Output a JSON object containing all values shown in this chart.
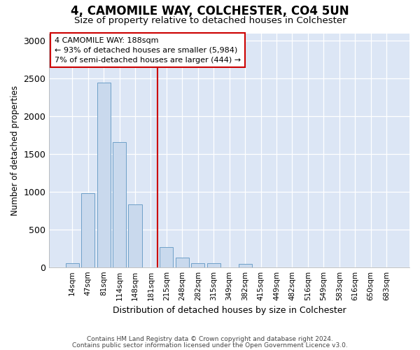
{
  "title1": "4, CAMOMILE WAY, COLCHESTER, CO4 5UN",
  "title2": "Size of property relative to detached houses in Colchester",
  "xlabel": "Distribution of detached houses by size in Colchester",
  "ylabel": "Number of detached properties",
  "bar_labels": [
    "14sqm",
    "47sqm",
    "81sqm",
    "114sqm",
    "148sqm",
    "181sqm",
    "215sqm",
    "248sqm",
    "282sqm",
    "315sqm",
    "349sqm",
    "382sqm",
    "415sqm",
    "449sqm",
    "482sqm",
    "516sqm",
    "549sqm",
    "583sqm",
    "616sqm",
    "650sqm",
    "683sqm"
  ],
  "bar_values": [
    50,
    980,
    2450,
    1660,
    830,
    0,
    270,
    130,
    50,
    50,
    0,
    40,
    0,
    0,
    0,
    0,
    0,
    0,
    0,
    0,
    0
  ],
  "bar_color": "#c9d9ed",
  "bar_edge_color": "#6ea0c8",
  "property_line_x": 5.425,
  "annotation_text1": "4 CAMOMILE WAY: 188sqm",
  "annotation_text2": "← 93% of detached houses are smaller (5,984)",
  "annotation_text3": "7% of semi-detached houses are larger (444) →",
  "annotation_box_color": "#ffffff",
  "annotation_box_edge_color": "#cc0000",
  "vline_color": "#cc0000",
  "footer1": "Contains HM Land Registry data © Crown copyright and database right 2024.",
  "footer2": "Contains public sector information licensed under the Open Government Licence v3.0.",
  "fig_bg_color": "#ffffff",
  "plot_bg_color": "#dce6f5",
  "ylim": [
    0,
    3100
  ],
  "yticks": [
    0,
    500,
    1000,
    1500,
    2000,
    2500,
    3000
  ]
}
